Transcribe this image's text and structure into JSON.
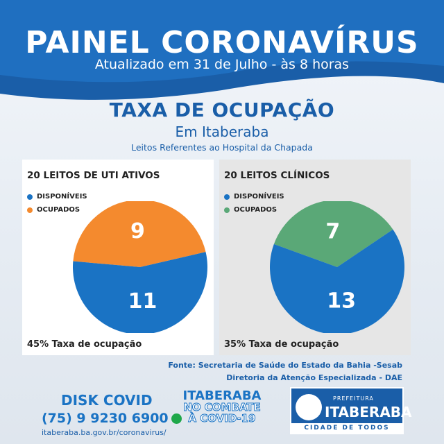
{
  "header": {
    "title": "PAINEL CORONAVÍRUS",
    "subtitle": "Atualizado em 31 de Julho - às 8 horas"
  },
  "section": {
    "title": "TAXA DE OCUPAÇÃO",
    "location": "Em Itaberaba",
    "note": "Leitos Referentes ao Hospital da Chapada"
  },
  "colors": {
    "available": "#1a73c4",
    "occupied_uti": "#f48a2e",
    "occupied_clinic": "#5aa877",
    "brand_blue": "#1a5ea8"
  },
  "chart_data": [
    {
      "type": "pie",
      "title": "20 LEITOS DE UTI ATIVOS",
      "categories": [
        "DISPONÍVEIS",
        "OCUPADOS"
      ],
      "values": [
        11,
        9
      ],
      "value_labels": [
        "11",
        "9"
      ],
      "colors": [
        "#1a73c4",
        "#f48a2e"
      ],
      "footer": "45% Taxa de ocupação",
      "legend": "top-left"
    },
    {
      "type": "pie",
      "title": "20 LEITOS CLÍNICOS",
      "categories": [
        "DISPONÍVEIS",
        "OCUPADOS"
      ],
      "values": [
        13,
        7
      ],
      "value_labels": [
        "13",
        "7"
      ],
      "colors": [
        "#1a73c4",
        "#5aa877"
      ],
      "footer": "35% Taxa de ocupação",
      "legend": "top-left"
    }
  ],
  "source": {
    "line1": "Fonte: Secretaria de Saúde do Estado da Bahia -Sesab",
    "line2": "Diretoria da Atenção Especializada - DAE"
  },
  "footer": {
    "disk_label": "DISK COVID",
    "phone": "(75) 9 9230 6900",
    "url": "itaberaba.ba.gov.br/coronavirus/",
    "campaign_line1": "ITABERABA",
    "campaign_line2": "NO COMBATE",
    "campaign_line3": "À COVID-19",
    "pref_small": "PREFEITURA",
    "pref_big": "ITABERABA",
    "pref_slogan": "CIDADE DE TODOS"
  }
}
